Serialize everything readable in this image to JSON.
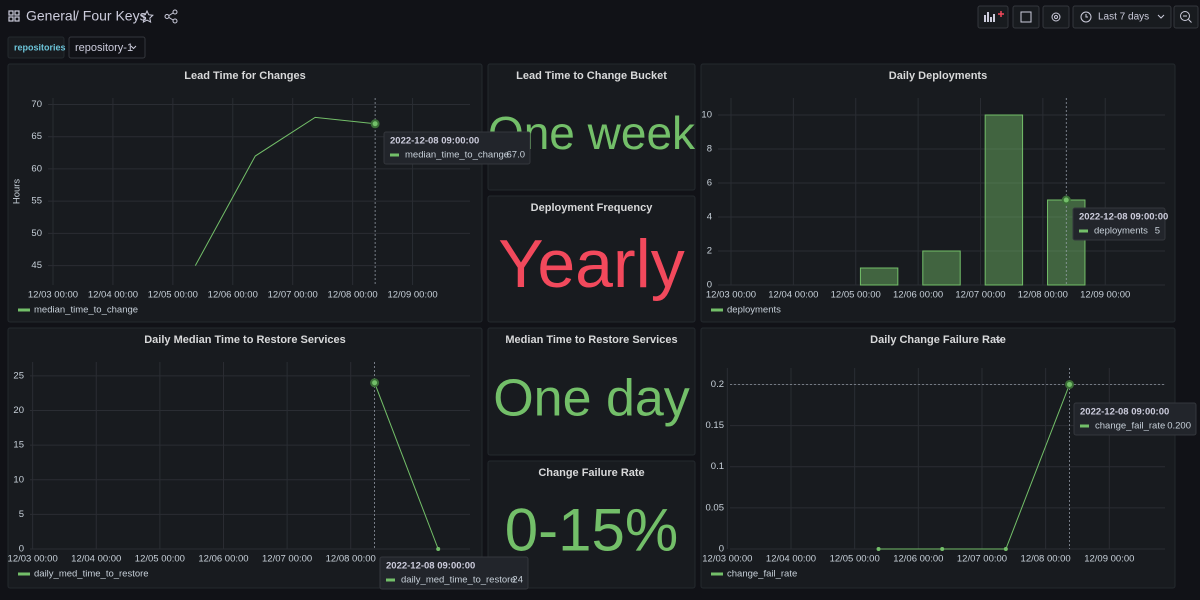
{
  "header": {
    "folder": "General",
    "title": "/ Four Keys",
    "time_range": "Last 7 days"
  },
  "variables": {
    "label": "repositories",
    "value": "repository-1"
  },
  "stat_panels": [
    {
      "title": "Lead Time to Change Bucket",
      "value": "One week",
      "color": "#73bf69"
    },
    {
      "title": "Deployment Frequency",
      "value": "Yearly",
      "color": "#f2495c"
    },
    {
      "title": "Median Time to Restore Services",
      "value": "One day",
      "color": "#73bf69"
    },
    {
      "title": "Change Failure Rate",
      "value": "0-15%",
      "color": "#73bf69"
    }
  ],
  "chart_data": [
    {
      "type": "line",
      "title": "Lead Time for Changes",
      "ylabel": "Hours",
      "x": [
        "12/05 09:00",
        "12/06 09:00",
        "12/07 09:00",
        "12/08 09:00"
      ],
      "series": [
        {
          "name": "median_time_to_change",
          "color": "#73bf69",
          "values": [
            45,
            62,
            68,
            67
          ]
        }
      ],
      "xlim": [
        "12/02 22:00",
        "12/09 23:00"
      ],
      "xticks": [
        "12/03 00:00",
        "12/04 00:00",
        "12/05 00:00",
        "12/06 00:00",
        "12/07 00:00",
        "12/08 00:00",
        "12/09 00:00"
      ],
      "ylim": [
        42,
        71
      ],
      "yticks": [
        45,
        50,
        55,
        60,
        65,
        70
      ],
      "grid": true,
      "points": false,
      "tooltip": {
        "time": "2022-12-08 09:00:00",
        "value": 67,
        "value_label": "67.0"
      }
    },
    {
      "type": "bar",
      "title": "Daily Deployments",
      "x": [
        "12/05 09:00",
        "12/06 09:00",
        "12/07 09:00",
        "12/08 09:00"
      ],
      "series": [
        {
          "name": "deployments",
          "color": "#73bf69",
          "values": [
            1,
            2,
            10,
            5
          ]
        }
      ],
      "xlim": [
        "12/02 19:00",
        "12/09 23:00"
      ],
      "xticks": [
        "12/03 00:00",
        "12/04 00:00",
        "12/05 00:00",
        "12/06 00:00",
        "12/07 00:00",
        "12/08 00:00",
        "12/09 00:00"
      ],
      "ylim": [
        0,
        11
      ],
      "yticks": [
        0,
        2,
        4,
        6,
        8,
        10
      ],
      "grid": true,
      "points": false,
      "tooltip": {
        "time": "2022-12-08 09:00:00",
        "value": 5
      }
    },
    {
      "type": "line",
      "title": "Daily Median Time to Restore Services",
      "x": [
        "12/08 09:00",
        "12/09 09:00"
      ],
      "series": [
        {
          "name": "daily_med_time_to_restore",
          "color": "#73bf69",
          "values": [
            24,
            0
          ]
        }
      ],
      "xlim": [
        "12/02 23:00",
        "12/09 21:00"
      ],
      "xticks": [
        "12/03 00:00",
        "12/04 00:00",
        "12/05 00:00",
        "12/06 00:00",
        "12/07 00:00",
        "12/08 00:00"
      ],
      "ylim": [
        0,
        27
      ],
      "yticks": [
        0,
        5,
        10,
        15,
        20,
        25
      ],
      "grid": true,
      "points": true,
      "tooltip": {
        "time": "2022-12-08 09:00:00",
        "value": 24
      }
    },
    {
      "type": "line",
      "title": "Daily Change Failure Rate",
      "x": [
        "12/05 09:00",
        "12/06 09:00",
        "12/07 09:00",
        "12/08 09:00"
      ],
      "series": [
        {
          "name": "change_fail_rate",
          "color": "#73bf69",
          "values": [
            0,
            0,
            0,
            0.2
          ]
        }
      ],
      "xlim": [
        "12/03 01:00",
        "12/09 21:00"
      ],
      "xticks": [
        "12/03 00:00",
        "12/04 00:00",
        "12/05 00:00",
        "12/06 00:00",
        "12/07 00:00",
        "12/08 00:00",
        "12/09 00:00"
      ],
      "ylim": [
        0,
        0.22
      ],
      "yticks": [
        0,
        0.05,
        0.1,
        0.15,
        0.2
      ],
      "grid": true,
      "points": true,
      "tooltip": {
        "time": "2022-12-08 09:00:00",
        "value": 0.2,
        "value_label": "0.200"
      }
    }
  ]
}
